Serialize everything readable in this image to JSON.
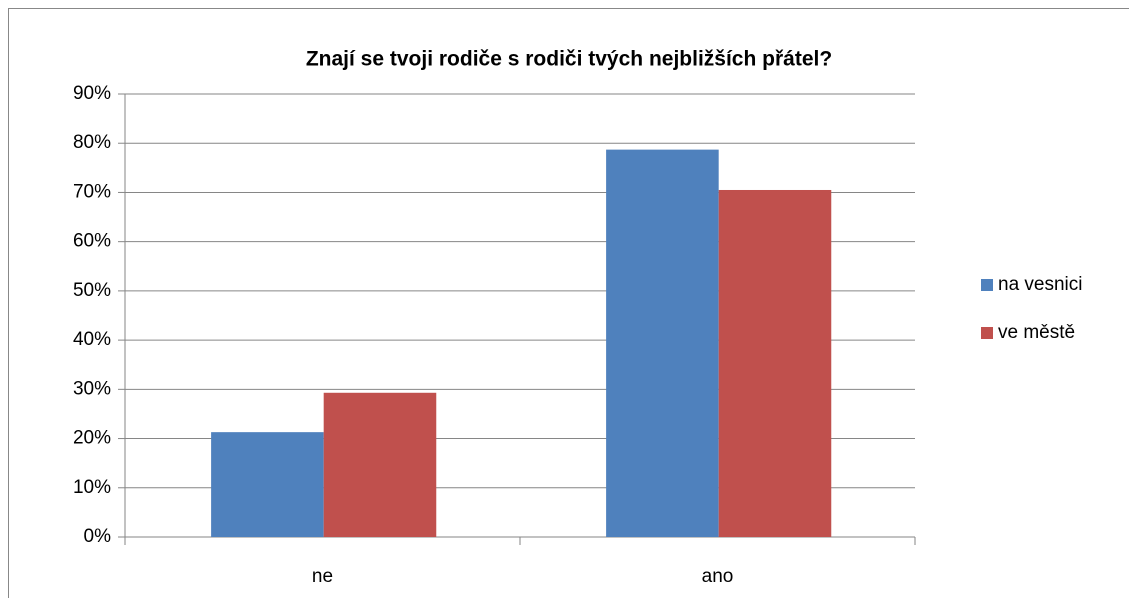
{
  "chart_data": {
    "type": "bar",
    "title": "Znají se tvoji rodiče s rodiči tvých nejbližších přátel?",
    "categories": [
      "ne",
      "ano"
    ],
    "series": [
      {
        "name": "na vesnici",
        "color": "#4f81bd",
        "values": [
          21.3,
          78.7
        ]
      },
      {
        "name": "ve městě",
        "color": "#c0504d",
        "values": [
          29.3,
          70.5
        ]
      }
    ],
    "ylim": [
      0,
      90
    ],
    "yticks": [
      {
        "value": 0,
        "label": "0%"
      },
      {
        "value": 10,
        "label": "10%"
      },
      {
        "value": 20,
        "label": "20%"
      },
      {
        "value": 30,
        "label": "30%"
      },
      {
        "value": 40,
        "label": "40%"
      },
      {
        "value": 50,
        "label": "50%"
      },
      {
        "value": 60,
        "label": "60%"
      },
      {
        "value": 70,
        "label": "70%"
      },
      {
        "value": 80,
        "label": "80%"
      },
      {
        "value": 90,
        "label": "90%"
      }
    ],
    "grid": true,
    "legend": "right"
  }
}
